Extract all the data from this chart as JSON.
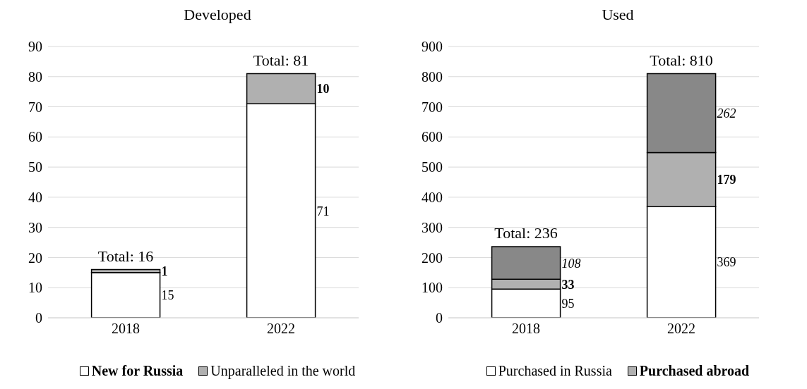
{
  "chart_data": [
    {
      "type": "bar",
      "title": "Developed",
      "categories": [
        "2018",
        "2022"
      ],
      "stacked": true,
      "data_labels": true,
      "grid": "y",
      "legend": "bottom",
      "ylim": [
        0,
        90
      ],
      "yticks": [
        0,
        10,
        20,
        30,
        40,
        50,
        60,
        70,
        80,
        90
      ],
      "totals": [
        "Total: 16",
        "Total: 81"
      ],
      "series": [
        {
          "name": "New for Russia",
          "color": "#ffffff",
          "values": [
            15,
            71
          ]
        },
        {
          "name": "Unparalleled in the world",
          "color": "#b0b0b0",
          "values": [
            1,
            10
          ]
        }
      ]
    },
    {
      "type": "bar",
      "title": "Used",
      "categories": [
        "2018",
        "2022"
      ],
      "stacked": true,
      "data_labels": true,
      "grid": "y",
      "legend": "bottom",
      "ylim": [
        0,
        900
      ],
      "yticks": [
        0,
        100,
        200,
        300,
        400,
        500,
        600,
        700,
        800,
        900
      ],
      "totals": [
        "Total: 236",
        "Total: 810"
      ],
      "series": [
        {
          "name": "Purchased in Russia",
          "color": "#ffffff",
          "values": [
            95,
            369
          ]
        },
        {
          "name": "Purchased abroad",
          "color": "#b0b0b0",
          "values": [
            33,
            179
          ]
        },
        {
          "color": "#888888",
          "values": [
            108,
            262
          ]
        }
      ]
    }
  ]
}
